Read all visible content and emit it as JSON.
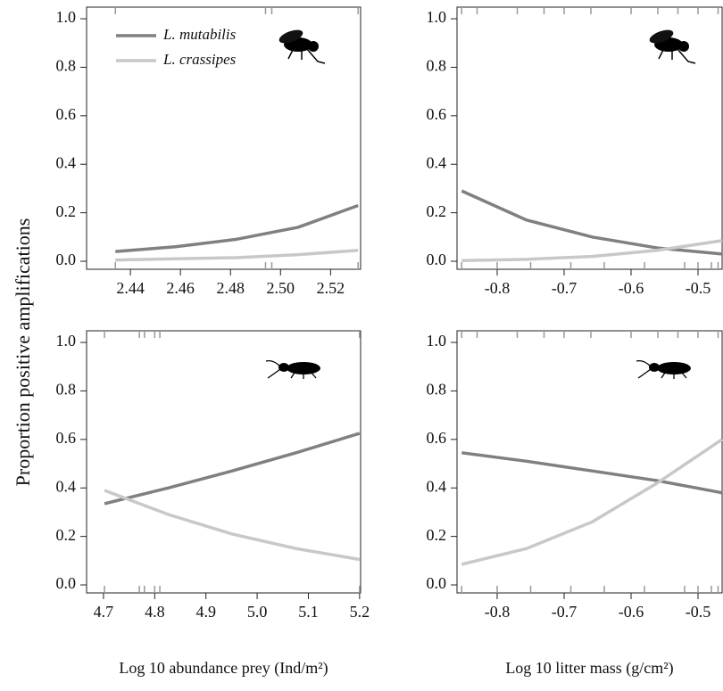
{
  "ylabel": "Proportion positive amplifications",
  "chart_data": [
    {
      "type": "line",
      "xlim": [
        2.4225,
        2.532
      ],
      "ylim": [
        -0.033,
        1.048
      ],
      "xticks": [
        2.44,
        2.46,
        2.48,
        {
          "value": 2.5,
          "label": "2.50"
        },
        2.52
      ],
      "yticks": [
        {
          "value": 0,
          "label": "0.0"
        },
        0.2,
        0.4,
        0.6,
        0.8,
        {
          "value": 1,
          "label": "1.0"
        }
      ],
      "x": [
        2.434,
        2.458,
        2.482,
        2.507,
        2.531
      ],
      "series": [
        {
          "name": "L. mutabilis",
          "color": "#808080",
          "values": [
            0.04,
            0.06,
            0.09,
            0.14,
            0.23
          ]
        },
        {
          "name": "L. crassipes",
          "color": "#c8c8c8",
          "values": [
            0.005,
            0.01,
            0.015,
            0.027,
            0.045
          ]
        }
      ],
      "rug_top": [
        2.434,
        2.494,
        2.4965,
        2.531
      ],
      "rug_bottom": [
        2.434,
        2.494,
        2.4965,
        2.531
      ],
      "legend": "top-left",
      "icon": "fly"
    },
    {
      "type": "line",
      "xlim": [
        -0.86,
        -0.464
      ],
      "ylim": [
        -0.033,
        1.048
      ],
      "xticks": [
        -0.8,
        -0.7,
        -0.6,
        -0.5
      ],
      "yticks": [
        {
          "value": 0,
          "label": "0.0"
        },
        0.2,
        0.4,
        0.6,
        0.8,
        {
          "value": 1,
          "label": "1.0"
        }
      ],
      "x": [
        -0.853,
        -0.756,
        -0.658,
        -0.561,
        -0.464
      ],
      "series": [
        {
          "name": "L. mutabilis",
          "color": "#808080",
          "values": [
            0.29,
            0.17,
            0.1,
            0.055,
            0.03
          ]
        },
        {
          "name": "L. crassipes",
          "color": "#c8c8c8",
          "values": [
            0.003,
            0.008,
            0.02,
            0.045,
            0.085
          ]
        }
      ],
      "rug_top": [
        -0.853,
        -0.83,
        -0.77,
        -0.73,
        -0.7,
        -0.66,
        -0.6,
        -0.56,
        -0.53,
        -0.5,
        -0.47
      ],
      "rug_bottom": [
        -0.853,
        -0.8,
        -0.75,
        -0.69,
        -0.64,
        -0.58,
        -0.52,
        -0.5,
        -0.48,
        -0.47
      ],
      "icon": "fly"
    },
    {
      "type": "line",
      "xlim": [
        4.667,
        5.202
      ],
      "ylim": [
        -0.033,
        1.048
      ],
      "xticks": [
        4.7,
        4.8,
        4.9,
        {
          "value": 5,
          "label": "5.0"
        },
        5.1,
        5.2
      ],
      "yticks": [
        {
          "value": 0,
          "label": "0.0"
        },
        0.2,
        0.4,
        0.6,
        0.8,
        {
          "value": 1,
          "label": "1.0"
        }
      ],
      "x": [
        4.702,
        4.827,
        4.951,
        5.076,
        5.2
      ],
      "series": [
        {
          "name": "L. mutabilis",
          "color": "#808080",
          "values": [
            0.335,
            0.4,
            0.47,
            0.545,
            0.625
          ]
        },
        {
          "name": "L. crassipes",
          "color": "#c8c8c8",
          "values": [
            0.39,
            0.29,
            0.21,
            0.15,
            0.105
          ]
        }
      ],
      "rug_top": [
        4.702,
        4.77,
        4.78,
        4.8,
        4.81,
        5.2
      ],
      "rug_bottom": [
        4.702,
        4.77,
        4.78,
        4.8,
        4.81,
        5.2
      ],
      "xlabel": "Log 10 abundance prey (Ind/m²)",
      "icon": "beetle"
    },
    {
      "type": "line",
      "xlim": [
        -0.86,
        -0.464
      ],
      "ylim": [
        -0.033,
        1.048
      ],
      "xticks": [
        -0.8,
        -0.7,
        -0.6,
        -0.5
      ],
      "yticks": [
        {
          "value": 0,
          "label": "0.0"
        },
        0.2,
        0.4,
        0.6,
        0.8,
        {
          "value": 1,
          "label": "1.0"
        }
      ],
      "x": [
        -0.853,
        -0.756,
        -0.658,
        -0.561,
        -0.464
      ],
      "series": [
        {
          "name": "L. mutabilis",
          "color": "#808080",
          "values": [
            0.545,
            0.51,
            0.47,
            0.43,
            0.38
          ]
        },
        {
          "name": "L. crassipes",
          "color": "#c8c8c8",
          "values": [
            0.085,
            0.15,
            0.26,
            0.42,
            0.6
          ]
        }
      ],
      "rug_top": [
        -0.853,
        -0.83,
        -0.77,
        -0.73,
        -0.7,
        -0.66,
        -0.6,
        -0.56,
        -0.53,
        -0.5,
        -0.47
      ],
      "rug_bottom": [
        -0.853,
        -0.8,
        -0.75,
        -0.69,
        -0.64,
        -0.58,
        -0.52,
        -0.5,
        -0.48,
        -0.47
      ],
      "xlabel": "Log 10 litter mass (g/cm²)",
      "icon": "beetle"
    }
  ]
}
